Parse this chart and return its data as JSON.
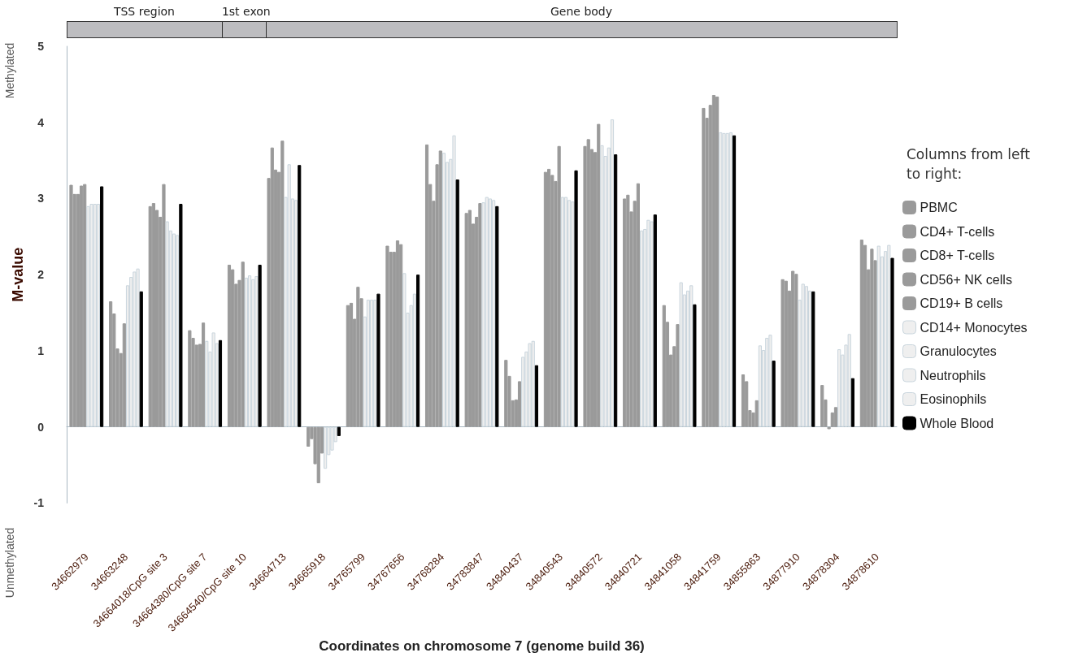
{
  "chart_data": {
    "type": "bar",
    "xlabel": "Coordinates on chromosome 7 (genome build 36)",
    "ylabel": "M-value",
    "legend_title": "Columns from left to right:",
    "annotations": [
      "Methylated",
      "Unmethylated",
      "TSS region",
      "1st exon",
      "Gene body"
    ],
    "categories": [
      "34662979",
      "34663248",
      "34664018/CpG site 3",
      "34664380/CpG site 7",
      "34664540/CpG site 10",
      "34664713",
      "34665918",
      "34765799",
      "34767656",
      "34768284",
      "34783847",
      "34840437",
      "34840543",
      "34840572",
      "34840721",
      "34841058",
      "34841759",
      "34855863",
      "34877910",
      "34878304",
      "34878610"
    ],
    "ylim": [
      -1,
      5
    ],
    "yticks": [
      -1,
      0,
      1,
      2,
      3,
      4,
      5
    ],
    "legend": "right",
    "series": [
      {
        "name": "PBMC",
        "color": "#9a9a9a",
        "values": [
          3.18,
          1.65,
          2.9,
          1.27,
          2.13,
          3.27,
          -0.26,
          1.6,
          2.38,
          3.71,
          2.81,
          0.88,
          3.35,
          3.69,
          3.0,
          1.6,
          4.19,
          0.69,
          1.94,
          0.55,
          2.46
        ]
      },
      {
        "name": "CD4+ T-cells",
        "color": "#9a9a9a",
        "values": [
          3.06,
          1.49,
          2.94,
          1.17,
          2.07,
          3.67,
          -0.16,
          1.63,
          2.3,
          3.19,
          2.85,
          0.67,
          3.39,
          3.78,
          3.05,
          1.38,
          4.06,
          0.6,
          1.92,
          0.36,
          2.39
        ]
      },
      {
        "name": "CD8+ T-cells",
        "color": "#9a9a9a",
        "values": [
          3.06,
          1.03,
          2.85,
          1.08,
          1.88,
          3.38,
          -0.49,
          1.42,
          2.3,
          2.97,
          2.67,
          0.35,
          3.31,
          3.65,
          2.83,
          0.95,
          4.23,
          0.22,
          1.79,
          -0.03,
          2.07
        ]
      },
      {
        "name": "CD56+ NK cells",
        "color": "#9a9a9a",
        "values": [
          3.17,
          0.97,
          2.76,
          1.09,
          1.93,
          3.35,
          -0.74,
          1.84,
          2.45,
          3.45,
          2.76,
          0.36,
          3.23,
          3.61,
          2.97,
          1.06,
          4.36,
          0.19,
          2.05,
          0.19,
          2.34
        ]
      },
      {
        "name": "CD19+ B cells",
        "color": "#9a9a9a",
        "values": [
          3.19,
          1.36,
          3.19,
          1.37,
          2.17,
          3.76,
          -0.35,
          1.69,
          2.4,
          3.63,
          2.94,
          0.6,
          3.69,
          3.98,
          3.2,
          1.35,
          4.34,
          0.35,
          2.01,
          0.26,
          2.19
        ]
      },
      {
        "name": "CD14+ Monocytes",
        "color": "#efefef",
        "values": [
          2.9,
          1.86,
          2.7,
          1.13,
          1.96,
          3.02,
          -0.55,
          1.45,
          2.02,
          3.6,
          2.95,
          0.92,
          3.02,
          3.7,
          2.58,
          1.9,
          3.87,
          1.07,
          1.67,
          1.02,
          2.38
        ]
      },
      {
        "name": "Granulocytes",
        "color": "#efefef",
        "values": [
          2.93,
          1.97,
          2.58,
          0.99,
          1.99,
          3.45,
          -0.37,
          1.67,
          1.5,
          3.48,
          3.02,
          0.99,
          3.02,
          3.56,
          2.6,
          1.74,
          3.86,
          1.01,
          1.88,
          0.95,
          2.24
        ]
      },
      {
        "name": "Neutrophils",
        "color": "#efefef",
        "values": [
          2.93,
          2.04,
          2.54,
          1.24,
          1.94,
          3.0,
          -0.31,
          1.67,
          1.6,
          3.52,
          3.0,
          1.1,
          2.98,
          3.67,
          2.72,
          1.79,
          3.86,
          1.17,
          1.85,
          1.08,
          2.31
        ]
      },
      {
        "name": "Eosinophils",
        "color": "#efefef",
        "values": [
          2.93,
          2.08,
          2.52,
          1.1,
          1.98,
          2.98,
          -0.2,
          1.67,
          1.75,
          3.83,
          2.98,
          1.13,
          2.96,
          4.04,
          2.7,
          1.86,
          3.87,
          1.21,
          1.79,
          1.22,
          2.39
        ]
      },
      {
        "name": "Whole Blood",
        "color": "#000000",
        "values": [
          3.16,
          1.78,
          2.93,
          1.14,
          2.13,
          3.44,
          -0.12,
          1.75,
          2.0,
          3.25,
          2.9,
          0.81,
          3.37,
          3.58,
          2.79,
          1.61,
          3.83,
          0.87,
          1.78,
          0.64,
          2.22
        ]
      }
    ]
  }
}
